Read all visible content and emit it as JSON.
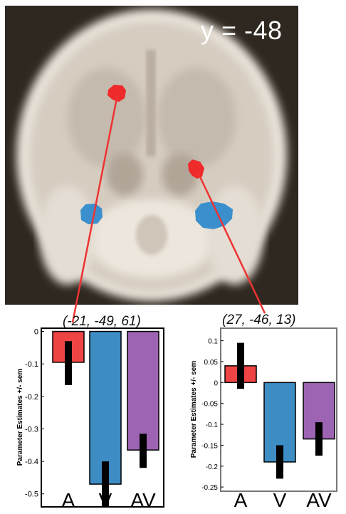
{
  "image": {
    "slice_label": "y = -48",
    "rois": [
      {
        "coordinate": "(-21, -49, 61)",
        "color": "#ee3333"
      },
      {
        "coordinate": "(27, -46, 13)",
        "color": "#ee3333"
      }
    ],
    "blue_region_color": "#3a8fcc"
  },
  "colors": {
    "A": "#ee4444",
    "V": "#3d8cc4",
    "AV": "#9d64b4",
    "error": "#000000",
    "line": "#ee3333"
  },
  "chart_data": [
    {
      "type": "bar",
      "title": "(-21, -49, 61)",
      "ylabel": "Parameter Estimates +/- sem",
      "xlabel": "",
      "categories": [
        "A",
        "V",
        "AV"
      ],
      "values": [
        -0.095,
        -0.47,
        -0.365
      ],
      "error_low": [
        -0.165,
        -0.54,
        -0.42
      ],
      "error_high": [
        -0.03,
        -0.4,
        -0.315
      ],
      "ylim": [
        -0.54,
        0.01
      ],
      "yticks": [
        0,
        -0.1,
        -0.2,
        -0.3,
        -0.4,
        -0.5
      ],
      "ytick_labels": [
        "0",
        "-0.1",
        "-0.2",
        "-0.3",
        "-0.4",
        "-0.5"
      ]
    },
    {
      "type": "bar",
      "title": "(27, -46, 13)",
      "ylabel": "Parameter Estimates +/- sem",
      "xlabel": "",
      "categories": [
        "A",
        "V",
        "AV"
      ],
      "values": [
        0.04,
        -0.19,
        -0.135
      ],
      "error_low": [
        -0.015,
        -0.23,
        -0.175
      ],
      "error_high": [
        0.095,
        -0.15,
        -0.095
      ],
      "ylim": [
        -0.26,
        0.13
      ],
      "yticks": [
        0.1,
        0.05,
        0,
        -0.05,
        -0.1,
        -0.15,
        -0.2,
        -0.25
      ],
      "ytick_labels": [
        "0.1",
        "0.05",
        "0",
        "-0.05",
        "-0.1",
        "-0.15",
        "-0.2",
        "-0.25"
      ]
    }
  ]
}
